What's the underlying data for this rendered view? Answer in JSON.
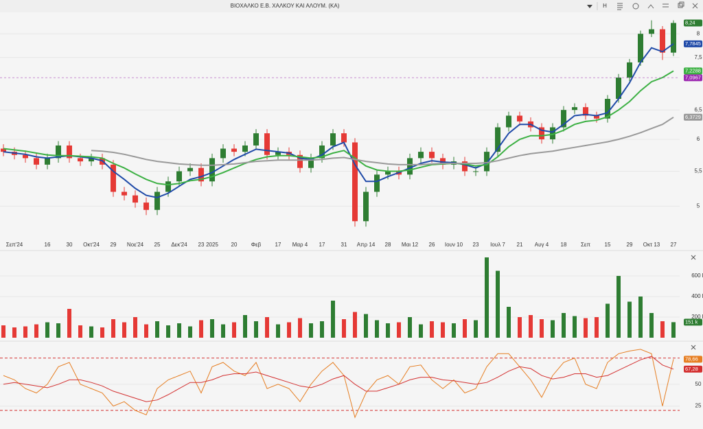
{
  "header": {
    "title": "ΒΙΟΧΑΛΚΟ Ε.Β. ΧΑΛΚΟΥ ΚΑΙ ΑΛΟΥΜ. (ΚΑ)",
    "button": "H"
  },
  "chart_data": [
    {
      "type": "candlestick",
      "log_scale": true,
      "categories": [
        null,
        "Σεπ'24",
        null,
        null,
        "16",
        null,
        "30",
        null,
        "Οκτ'24",
        null,
        "29",
        null,
        "Νοε'24",
        null,
        "25",
        null,
        "Δεκ'24",
        null,
        "23",
        "2025",
        null,
        "20",
        null,
        "Φεβ",
        null,
        "17",
        null,
        "Μαρ 4",
        null,
        "17",
        null,
        "31",
        null,
        "Απρ 14",
        null,
        "28",
        null,
        "Μαι 12",
        null,
        "26",
        null,
        "Ιουν 10",
        null,
        "23",
        null,
        "Ιουλ 7",
        null,
        "21",
        null,
        "Αυγ 4",
        null,
        "18",
        null,
        "Σεπ",
        null,
        "15",
        null,
        "29",
        null,
        "Οκτ 13",
        null,
        "27"
      ],
      "open": [
        5.85,
        5.8,
        5.75,
        5.7,
        5.6,
        5.7,
        5.9,
        5.7,
        5.65,
        5.7,
        5.6,
        5.2,
        5.15,
        5.05,
        4.95,
        5.2,
        5.35,
        5.5,
        5.55,
        5.35,
        5.7,
        5.85,
        5.8,
        5.9,
        6.1,
        5.75,
        5.8,
        5.75,
        5.55,
        5.7,
        5.9,
        6.1,
        5.95,
        4.8,
        5.2,
        5.45,
        5.5,
        5.45,
        5.7,
        5.8,
        5.7,
        5.6,
        5.65,
        5.5,
        5.5,
        5.8,
        6.2,
        6.4,
        6.3,
        6.2,
        6.0,
        6.2,
        6.5,
        6.55,
        6.4,
        6.35,
        6.7,
        7.1,
        7.4,
        8.0,
        8.1,
        7.6
      ],
      "high": [
        5.92,
        5.87,
        5.82,
        5.77,
        5.77,
        5.97,
        5.97,
        5.77,
        5.77,
        5.77,
        5.67,
        5.27,
        5.22,
        5.12,
        5.27,
        5.42,
        5.57,
        5.62,
        5.62,
        5.77,
        5.92,
        5.92,
        5.97,
        6.17,
        6.17,
        5.87,
        5.87,
        5.82,
        5.77,
        5.97,
        6.17,
        6.17,
        6.02,
        5.27,
        5.52,
        5.57,
        5.57,
        5.77,
        5.87,
        5.87,
        5.77,
        5.72,
        5.72,
        5.57,
        5.87,
        6.27,
        6.47,
        6.47,
        6.37,
        6.27,
        6.27,
        6.57,
        6.62,
        6.62,
        6.47,
        6.77,
        7.17,
        7.47,
        8.07,
        8.3,
        8.17,
        8.3
      ],
      "low": [
        5.73,
        5.68,
        5.63,
        5.53,
        5.53,
        5.63,
        5.63,
        5.58,
        5.58,
        5.53,
        5.13,
        5.08,
        4.98,
        4.88,
        4.88,
        5.13,
        5.28,
        5.43,
        5.28,
        5.28,
        5.63,
        5.73,
        5.73,
        5.83,
        5.68,
        5.68,
        5.68,
        5.48,
        5.48,
        5.63,
        5.83,
        5.88,
        4.73,
        4.73,
        5.13,
        5.38,
        5.38,
        5.38,
        5.63,
        5.63,
        5.53,
        5.53,
        5.43,
        5.43,
        5.43,
        5.73,
        6.13,
        6.23,
        6.13,
        5.93,
        5.93,
        6.13,
        6.43,
        6.33,
        6.28,
        6.28,
        6.63,
        7.03,
        7.33,
        7.93,
        7.45,
        7.53
      ],
      "close": [
        5.8,
        5.75,
        5.7,
        5.6,
        5.7,
        5.9,
        5.7,
        5.65,
        5.7,
        5.6,
        5.2,
        5.15,
        5.05,
        4.95,
        5.2,
        5.35,
        5.5,
        5.55,
        5.35,
        5.7,
        5.85,
        5.8,
        5.9,
        6.1,
        5.75,
        5.8,
        5.75,
        5.55,
        5.7,
        5.9,
        6.1,
        5.95,
        4.8,
        5.2,
        5.45,
        5.5,
        5.45,
        5.7,
        5.8,
        5.7,
        5.6,
        5.65,
        5.5,
        5.5,
        5.8,
        6.2,
        6.4,
        6.3,
        6.2,
        6.0,
        6.2,
        6.5,
        6.55,
        6.4,
        6.35,
        6.7,
        7.1,
        7.4,
        8.0,
        8.1,
        7.6,
        8.24
      ],
      "close_label": "8,24",
      "up_color": "#2e7d32",
      "down_color": "#e53935",
      "overlays": [
        {
          "color": "#1f4aa8",
          "value_label": "7,7845",
          "values": [
            5.8,
            5.78,
            5.76,
            5.72,
            5.7,
            5.72,
            5.74,
            5.72,
            5.7,
            5.66,
            5.5,
            5.38,
            5.25,
            5.15,
            5.12,
            5.18,
            5.28,
            5.38,
            5.42,
            5.48,
            5.58,
            5.68,
            5.76,
            5.84,
            5.82,
            5.8,
            5.78,
            5.7,
            5.68,
            5.75,
            5.88,
            5.95,
            5.6,
            5.35,
            5.35,
            5.42,
            5.48,
            5.55,
            5.62,
            5.66,
            5.64,
            5.63,
            5.6,
            5.55,
            5.62,
            5.85,
            6.1,
            6.25,
            6.25,
            6.15,
            6.12,
            6.25,
            6.4,
            6.42,
            6.4,
            6.45,
            6.7,
            7.0,
            7.4,
            7.7,
            7.62,
            7.7845
          ]
        },
        {
          "color": "#3cb043",
          "value_label": "7,2288",
          "values": [
            5.85,
            5.83,
            5.81,
            5.78,
            5.75,
            5.74,
            5.74,
            5.73,
            5.72,
            5.7,
            5.62,
            5.55,
            5.46,
            5.38,
            5.32,
            5.3,
            5.32,
            5.36,
            5.38,
            5.42,
            5.48,
            5.55,
            5.62,
            5.68,
            5.72,
            5.74,
            5.74,
            5.72,
            5.7,
            5.72,
            5.78,
            5.82,
            5.7,
            5.58,
            5.52,
            5.5,
            5.5,
            5.52,
            5.56,
            5.6,
            5.61,
            5.62,
            5.61,
            5.58,
            5.6,
            5.72,
            5.88,
            6.0,
            6.06,
            6.06,
            6.08,
            6.15,
            6.25,
            6.3,
            6.32,
            6.38,
            6.5,
            6.65,
            6.85,
            7.02,
            7.1,
            7.2288
          ]
        },
        {
          "color": "#999999",
          "value_label": "6,3729",
          "values": [
            null,
            null,
            null,
            null,
            null,
            null,
            null,
            null,
            5.82,
            5.81,
            5.79,
            5.76,
            5.72,
            5.68,
            5.65,
            5.63,
            5.61,
            5.6,
            5.59,
            5.59,
            5.6,
            5.61,
            5.63,
            5.65,
            5.66,
            5.67,
            5.67,
            5.67,
            5.67,
            5.68,
            5.7,
            5.71,
            5.68,
            5.65,
            5.63,
            5.61,
            5.6,
            5.6,
            5.6,
            5.61,
            5.62,
            5.62,
            5.62,
            5.62,
            5.63,
            5.66,
            5.7,
            5.74,
            5.77,
            5.79,
            5.81,
            5.84,
            5.87,
            5.9,
            5.93,
            5.96,
            6.0,
            6.05,
            6.11,
            6.18,
            6.25,
            6.3729
          ]
        }
      ],
      "levels": [
        {
          "value": 7.0967,
          "label": "7,0967",
          "color": "#9c27b0"
        }
      ],
      "ylim": [
        4.6,
        8.45
      ],
      "yticks": [
        5,
        {
          "value": 5.5,
          "label": "5,5"
        },
        6,
        {
          "value": 6.5,
          "label": "6,5"
        },
        {
          "value": 7.5,
          "label": "7,5"
        },
        8
      ]
    },
    {
      "type": "bar",
      "values": [
        120000,
        100000,
        110000,
        130000,
        150000,
        140000,
        280000,
        120000,
        110000,
        100000,
        180000,
        150000,
        200000,
        130000,
        160000,
        120000,
        140000,
        110000,
        170000,
        180000,
        130000,
        150000,
        220000,
        160000,
        200000,
        130000,
        150000,
        190000,
        140000,
        160000,
        360000,
        180000,
        250000,
        230000,
        170000,
        140000,
        150000,
        200000,
        130000,
        160000,
        150000,
        140000,
        180000,
        170000,
        780000,
        650000,
        300000,
        200000,
        220000,
        180000,
        170000,
        240000,
        210000,
        190000,
        200000,
        330000,
        600000,
        350000,
        400000,
        240000,
        160000,
        151000
      ],
      "last_label": "151 k",
      "ylim": [
        0,
        800000
      ],
      "yticks": [
        {
          "value": 200000,
          "label": "200 k"
        },
        {
          "value": 400000,
          "label": "400 k"
        },
        {
          "value": 600000,
          "label": "600 k"
        }
      ]
    },
    {
      "type": "line",
      "series": [
        {
          "color": "#e67e22",
          "value_label": "78,66",
          "values": [
            60,
            55,
            45,
            40,
            50,
            70,
            75,
            50,
            45,
            40,
            25,
            30,
            20,
            15,
            45,
            55,
            60,
            65,
            40,
            70,
            75,
            65,
            60,
            75,
            45,
            50,
            45,
            30,
            50,
            65,
            75,
            60,
            12,
            40,
            55,
            60,
            50,
            70,
            72,
            55,
            45,
            55,
            40,
            45,
            70,
            85,
            85,
            70,
            55,
            35,
            60,
            75,
            80,
            50,
            45,
            75,
            85,
            88,
            90,
            85,
            25,
            78.66
          ]
        },
        {
          "color": "#d32f2f",
          "value_label": "67,28",
          "values": [
            50,
            52,
            50,
            48,
            46,
            50,
            55,
            55,
            52,
            48,
            42,
            38,
            34,
            30,
            32,
            38,
            45,
            52,
            52,
            55,
            60,
            62,
            62,
            64,
            60,
            56,
            52,
            48,
            46,
            50,
            56,
            60,
            50,
            42,
            42,
            46,
            50,
            55,
            58,
            58,
            55,
            54,
            52,
            50,
            52,
            58,
            65,
            70,
            68,
            60,
            56,
            58,
            62,
            62,
            58,
            60,
            66,
            72,
            78,
            82,
            72,
            67.28
          ]
        }
      ],
      "levels": [
        80,
        20
      ],
      "ylim": [
        5,
        97
      ],
      "yticks": [
        25,
        50
      ]
    }
  ]
}
